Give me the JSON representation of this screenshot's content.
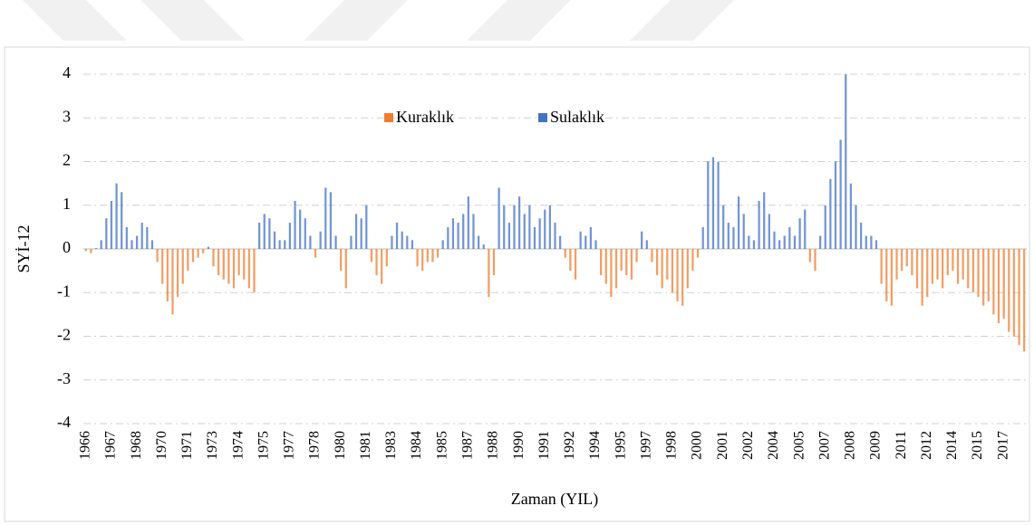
{
  "chart_data": {
    "type": "bar",
    "y_label": "SYİ-12",
    "x_label": "Zaman (YIL)",
    "categories": [
      "1966",
      null,
      null,
      null,
      null,
      "1967",
      null,
      null,
      null,
      null,
      "1968",
      null,
      null,
      null,
      null,
      "1970",
      null,
      null,
      null,
      null,
      "1971",
      null,
      null,
      null,
      null,
      "1973",
      null,
      null,
      null,
      null,
      "1974",
      null,
      null,
      null,
      null,
      "1975",
      null,
      null,
      null,
      null,
      "1977",
      null,
      null,
      null,
      null,
      "1978",
      null,
      null,
      null,
      null,
      "1980",
      null,
      null,
      null,
      null,
      "1981",
      null,
      null,
      null,
      null,
      "1983",
      null,
      null,
      null,
      null,
      "1984",
      null,
      null,
      null,
      null,
      "1985",
      null,
      null,
      null,
      null,
      "1987",
      null,
      null,
      null,
      null,
      "1988",
      null,
      null,
      null,
      null,
      "1990",
      null,
      null,
      null,
      null,
      "1991",
      null,
      null,
      null,
      null,
      "1992",
      null,
      null,
      null,
      null,
      "1994",
      null,
      null,
      null,
      null,
      "1995",
      null,
      null,
      null,
      null,
      "1997",
      null,
      null,
      null,
      null,
      "1998",
      null,
      null,
      null,
      null,
      "2000",
      null,
      null,
      null,
      null,
      "2001",
      null,
      null,
      null,
      null,
      "2002",
      null,
      null,
      null,
      null,
      "2004",
      null,
      null,
      null,
      null,
      "2005",
      null,
      null,
      null,
      null,
      "2007",
      null,
      null,
      null,
      null,
      "2008",
      null,
      null,
      null,
      null,
      "2009",
      null,
      null,
      null,
      null,
      "2011",
      null,
      null,
      null,
      null,
      "2012",
      null,
      null,
      null,
      null,
      "2014",
      null,
      null,
      null,
      null,
      "2015",
      null,
      null,
      null,
      null,
      "2017",
      null,
      null,
      null,
      null
    ],
    "series": [
      {
        "name": "Kuraklık",
        "color": "#ED7D31",
        "values": [
          -0.05,
          -0.1,
          null,
          null,
          null,
          null,
          null,
          null,
          null,
          null,
          null,
          null,
          null,
          null,
          -0.3,
          -0.8,
          -1.2,
          -1.5,
          -1.1,
          -0.8,
          -0.5,
          -0.3,
          -0.2,
          -0.1,
          null,
          -0.4,
          -0.6,
          -0.7,
          -0.8,
          -0.9,
          -0.6,
          -0.7,
          -0.9,
          -1.0,
          null,
          null,
          null,
          null,
          null,
          null,
          null,
          null,
          null,
          null,
          null,
          -0.2,
          null,
          null,
          null,
          null,
          -0.5,
          -0.9,
          null,
          null,
          null,
          null,
          -0.3,
          -0.6,
          -0.8,
          -0.4,
          null,
          null,
          null,
          null,
          null,
          -0.4,
          -0.5,
          -0.3,
          -0.3,
          -0.2,
          null,
          null,
          null,
          null,
          null,
          null,
          null,
          null,
          null,
          -1.1,
          -0.6,
          null,
          null,
          null,
          null,
          null,
          null,
          null,
          null,
          null,
          null,
          null,
          null,
          null,
          -0.2,
          -0.5,
          -0.7,
          null,
          null,
          null,
          null,
          -0.6,
          -0.8,
          -1.1,
          -0.9,
          -0.5,
          -0.6,
          -0.7,
          -0.3,
          null,
          null,
          -0.3,
          -0.6,
          -0.9,
          -0.7,
          -1.0,
          -1.2,
          -1.3,
          -0.9,
          -0.5,
          -0.2,
          null,
          null,
          null,
          null,
          null,
          null,
          null,
          null,
          null,
          null,
          null,
          null,
          null,
          null,
          null,
          null,
          null,
          null,
          null,
          null,
          null,
          -0.3,
          -0.5,
          null,
          null,
          null,
          null,
          null,
          null,
          null,
          null,
          null,
          null,
          null,
          null,
          -0.8,
          -1.2,
          -1.3,
          -0.7,
          -0.5,
          -0.4,
          -0.6,
          -0.9,
          -1.3,
          -1.1,
          -0.8,
          -0.7,
          -0.9,
          -0.6,
          -0.5,
          -0.8,
          -0.7,
          -0.9,
          -1.0,
          -1.1,
          -1.3,
          -1.2,
          -1.5,
          -1.7,
          -1.6,
          -1.9,
          -2.0,
          -2.2,
          -2.35
        ]
      },
      {
        "name": "Sulaklık",
        "color": "#4472C4",
        "values": [
          null,
          null,
          0.02,
          0.2,
          0.7,
          1.1,
          1.5,
          1.3,
          0.5,
          0.2,
          0.3,
          0.6,
          0.5,
          0.2,
          null,
          null,
          null,
          null,
          null,
          null,
          null,
          null,
          null,
          null,
          0.05,
          null,
          null,
          null,
          null,
          null,
          null,
          null,
          null,
          null,
          0.6,
          0.8,
          0.7,
          0.4,
          0.2,
          0.2,
          0.6,
          1.1,
          0.9,
          0.7,
          0.3,
          null,
          0.4,
          1.4,
          1.3,
          0.3,
          null,
          null,
          0.3,
          0.8,
          0.7,
          1.0,
          null,
          null,
          null,
          null,
          0.3,
          0.6,
          0.4,
          0.3,
          0.2,
          null,
          null,
          null,
          null,
          null,
          0.2,
          0.5,
          0.7,
          0.6,
          0.8,
          1.2,
          0.8,
          0.3,
          0.1,
          null,
          null,
          1.4,
          1.0,
          0.6,
          1.0,
          1.2,
          0.8,
          1.0,
          0.5,
          0.7,
          0.9,
          1.0,
          0.6,
          0.3,
          null,
          null,
          null,
          0.4,
          0.3,
          0.5,
          0.2,
          null,
          null,
          null,
          null,
          null,
          null,
          null,
          null,
          0.4,
          0.2,
          null,
          null,
          null,
          null,
          null,
          null,
          null,
          null,
          null,
          null,
          0.5,
          2.0,
          2.1,
          2.0,
          1.0,
          0.6,
          0.5,
          1.2,
          0.8,
          0.3,
          0.2,
          1.1,
          1.3,
          0.8,
          0.4,
          0.2,
          0.3,
          0.5,
          0.3,
          0.7,
          0.9,
          null,
          null,
          0.3,
          1.0,
          1.6,
          2.0,
          2.5,
          4.0,
          1.5,
          1.0,
          0.6,
          0.3,
          0.3,
          0.2,
          null,
          null,
          null,
          null,
          null,
          null,
          null,
          null,
          null,
          null,
          null,
          null,
          null,
          null,
          null,
          null,
          null,
          null,
          null,
          null,
          null,
          null,
          null,
          null,
          null,
          null,
          null,
          null,
          null
        ]
      }
    ],
    "ylim": [
      -4,
      4
    ],
    "yticks": [
      -4,
      -3,
      -2,
      -1,
      0,
      1,
      2,
      3,
      4
    ],
    "grid": true
  }
}
